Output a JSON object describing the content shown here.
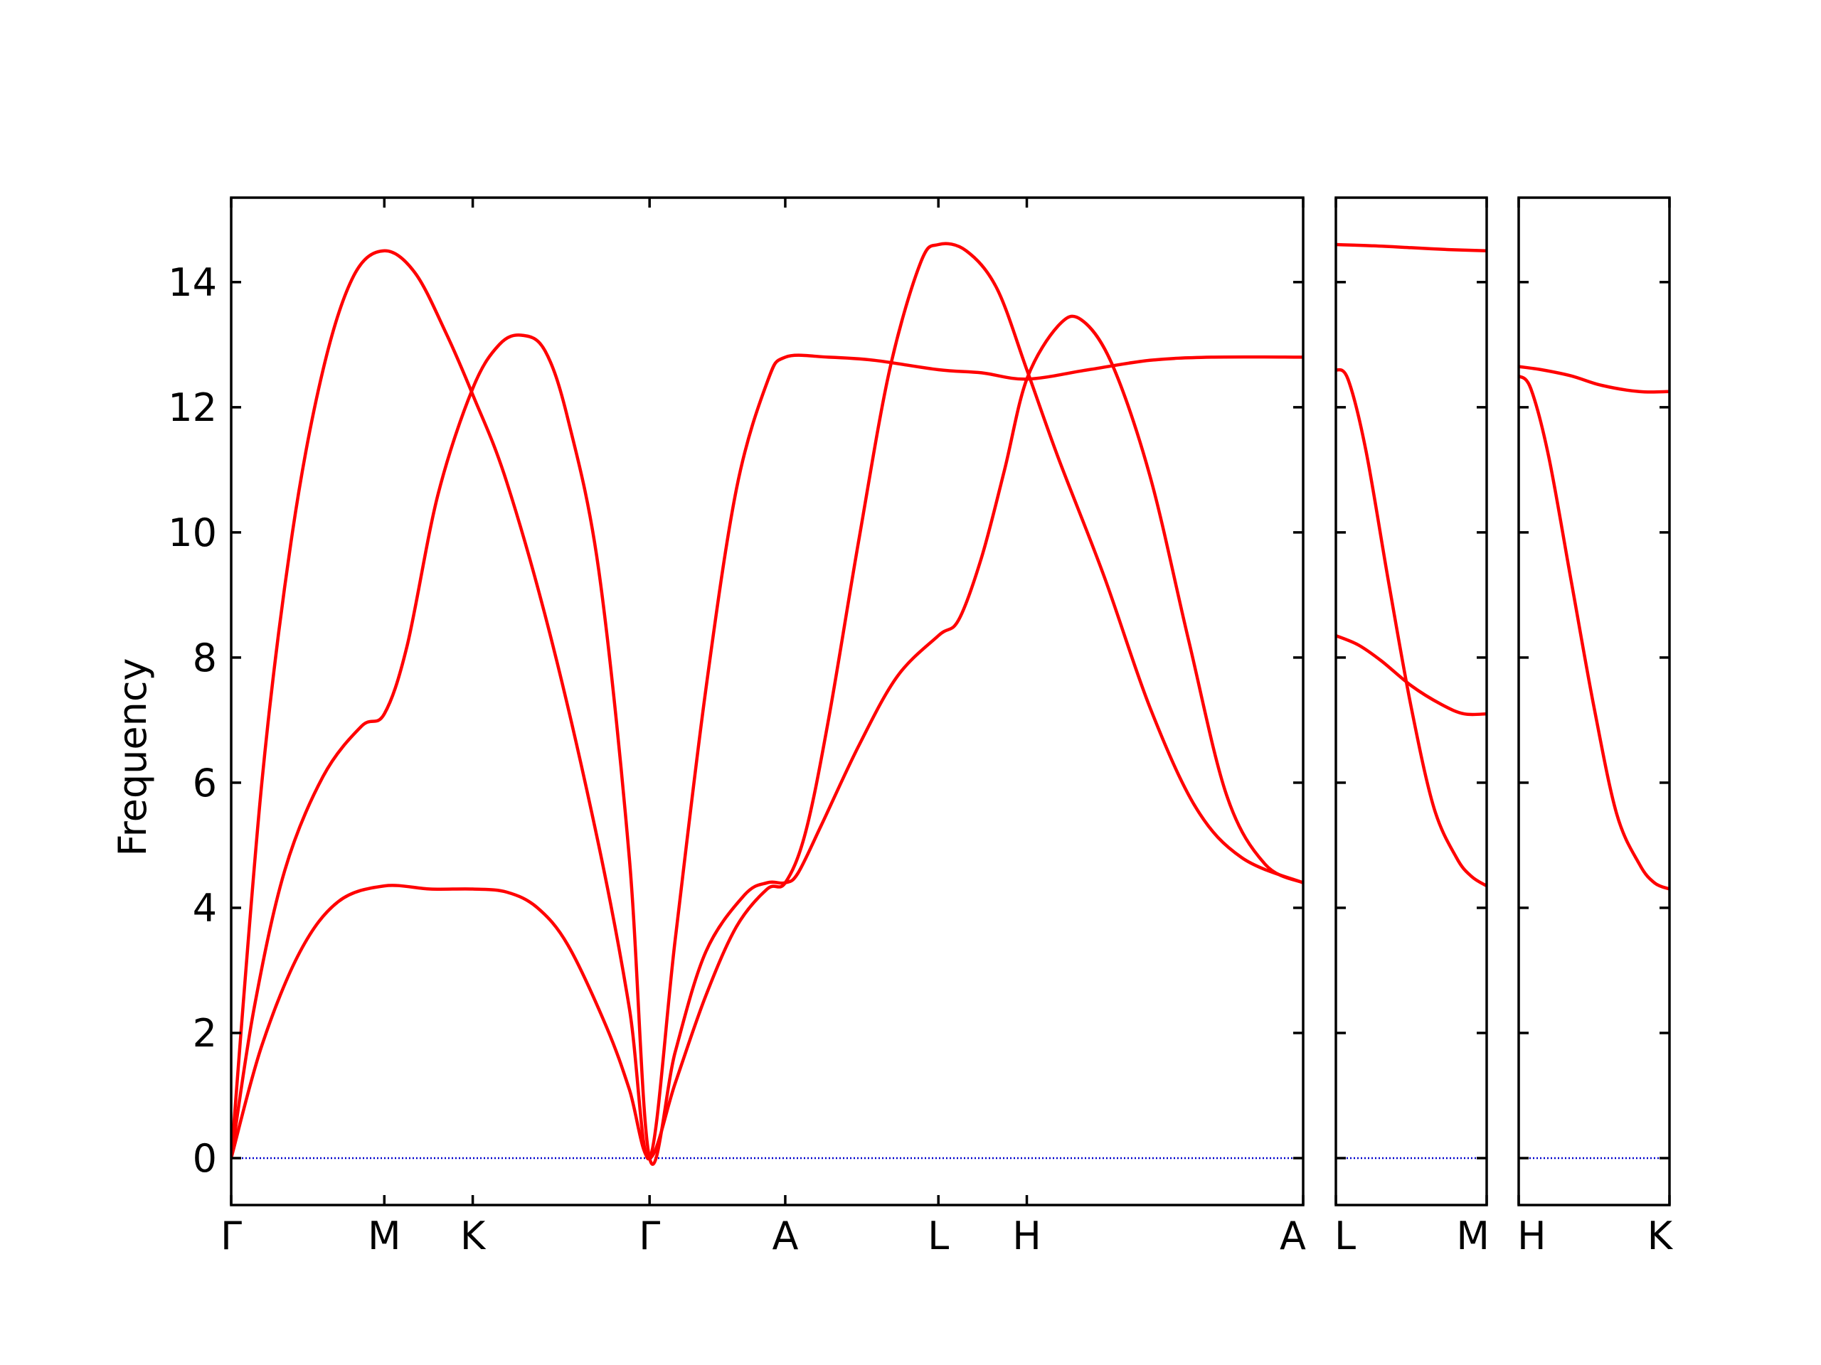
{
  "colors": {
    "bands": "#ff0000",
    "zero_line": "#0000cc",
    "frame": "#000000",
    "background": "#ffffff"
  },
  "chart_data": {
    "type": "line",
    "title": "",
    "ylabel": "Frequency",
    "ylim": [
      -0.75,
      15.35
    ],
    "yticks": [
      0,
      2,
      4,
      6,
      8,
      10,
      12,
      14
    ],
    "ytick_labels": [
      "0",
      "2",
      "4",
      "6",
      "8",
      "10",
      "12",
      "14"
    ],
    "zero_line": 0,
    "panels": [
      {
        "id": "main",
        "xticks": [
          0,
          1.0,
          1.5774,
          2.7321,
          3.6181,
          4.6181,
          5.1955,
          7.0
        ],
        "xtick_labels": [
          "Γ",
          "M",
          "K",
          "Γ",
          "A",
          "L",
          "H",
          "A"
        ],
        "series": [
          {
            "name": "",
            "points": [
              [
                0,
                0
              ],
              [
                0.2,
                6.0
              ],
              [
                0.4,
                10.0
              ],
              [
                0.6,
                12.6
              ],
              [
                0.8,
                14.1
              ],
              [
                1.0,
                14.5
              ],
              [
                1.2,
                14.15
              ],
              [
                1.4,
                13.2
              ],
              [
                1.5774,
                12.2
              ],
              [
                1.8,
                10.8
              ],
              [
                2.1,
                8.2
              ],
              [
                2.4,
                5.0
              ],
              [
                2.6,
                2.4
              ],
              [
                2.7321,
                0
              ],
              [
                2.9,
                3.5
              ],
              [
                3.1,
                7.5
              ],
              [
                3.3,
                10.7
              ],
              [
                3.5,
                12.4
              ],
              [
                3.6181,
                12.8
              ],
              [
                3.9,
                12.8
              ],
              [
                4.2,
                12.75
              ],
              [
                4.6181,
                12.6
              ],
              [
                4.9,
                12.55
              ],
              [
                5.1955,
                12.45
              ],
              [
                5.6,
                12.6
              ],
              [
                6.0,
                12.75
              ],
              [
                6.4,
                12.8
              ],
              [
                7.0,
                12.8
              ]
            ]
          },
          {
            "name": "",
            "points": [
              [
                0,
                0
              ],
              [
                0.15,
                2.4
              ],
              [
                0.35,
                4.6
              ],
              [
                0.6,
                6.1
              ],
              [
                0.85,
                6.9
              ],
              [
                1.0,
                7.1
              ],
              [
                1.15,
                8.2
              ],
              [
                1.35,
                10.6
              ],
              [
                1.5774,
                12.3
              ],
              [
                1.75,
                13.0
              ],
              [
                1.9,
                13.15
              ],
              [
                2.05,
                12.9
              ],
              [
                2.2,
                11.8
              ],
              [
                2.4,
                9.4
              ],
              [
                2.6,
                4.8
              ],
              [
                2.7321,
                0
              ],
              [
                2.9,
                1.7
              ],
              [
                3.1,
                3.3
              ],
              [
                3.35,
                4.2
              ],
              [
                3.5,
                4.4
              ],
              [
                3.6181,
                4.4
              ],
              [
                3.7,
                4.55
              ],
              [
                3.85,
                5.3
              ],
              [
                4.1,
                6.6
              ],
              [
                4.35,
                7.7
              ],
              [
                4.6181,
                8.35
              ],
              [
                4.75,
                8.6
              ],
              [
                4.9,
                9.6
              ],
              [
                5.05,
                11.0
              ],
              [
                5.1955,
                12.45
              ],
              [
                5.4,
                13.3
              ],
              [
                5.55,
                13.4
              ],
              [
                5.75,
                12.7
              ],
              [
                6.0,
                10.9
              ],
              [
                6.25,
                8.3
              ],
              [
                6.5,
                5.8
              ],
              [
                6.75,
                4.7
              ],
              [
                7.0,
                4.4
              ]
            ]
          },
          {
            "name": "",
            "points": [
              [
                0,
                0
              ],
              [
                0.2,
                1.8
              ],
              [
                0.45,
                3.3
              ],
              [
                0.7,
                4.1
              ],
              [
                1.0,
                4.35
              ],
              [
                1.3,
                4.3
              ],
              [
                1.5774,
                4.3
              ],
              [
                1.8,
                4.25
              ],
              [
                2.0,
                4.0
              ],
              [
                2.2,
                3.4
              ],
              [
                2.45,
                2.1
              ],
              [
                2.6,
                1.1
              ],
              [
                2.7321,
                0
              ],
              [
                2.9,
                1.2
              ],
              [
                3.1,
                2.6
              ],
              [
                3.3,
                3.7
              ],
              [
                3.5,
                4.3
              ],
              [
                3.6181,
                4.4
              ],
              [
                3.75,
                5.2
              ],
              [
                3.9,
                7.0
              ],
              [
                4.1,
                9.9
              ],
              [
                4.3,
                12.6
              ],
              [
                4.5,
                14.3
              ],
              [
                4.6181,
                14.6
              ],
              [
                4.8,
                14.5
              ],
              [
                5.0,
                13.9
              ],
              [
                5.1955,
                12.6
              ],
              [
                5.4,
                11.2
              ],
              [
                5.7,
                9.3
              ],
              [
                6.0,
                7.2
              ],
              [
                6.3,
                5.6
              ],
              [
                6.6,
                4.8
              ],
              [
                7.0,
                4.4
              ]
            ]
          }
        ]
      },
      {
        "id": "lm",
        "xticks": [
          0,
          1
        ],
        "xtick_labels": [
          "L",
          "M"
        ],
        "series": [
          {
            "name": "",
            "points": [
              [
                0,
                14.6
              ],
              [
                0.25,
                14.58
              ],
              [
                0.5,
                14.55
              ],
              [
                0.75,
                14.52
              ],
              [
                1.0,
                14.5
              ]
            ]
          },
          {
            "name": "",
            "points": [
              [
                0,
                12.6
              ],
              [
                0.08,
                12.45
              ],
              [
                0.2,
                11.3
              ],
              [
                0.35,
                9.2
              ],
              [
                0.5,
                7.2
              ],
              [
                0.65,
                5.6
              ],
              [
                0.8,
                4.8
              ],
              [
                0.9,
                4.5
              ],
              [
                1.0,
                4.35
              ]
            ]
          },
          {
            "name": "",
            "points": [
              [
                0,
                8.35
              ],
              [
                0.15,
                8.2
              ],
              [
                0.3,
                7.95
              ],
              [
                0.5,
                7.55
              ],
              [
                0.7,
                7.25
              ],
              [
                0.85,
                7.1
              ],
              [
                1.0,
                7.1
              ]
            ]
          }
        ]
      },
      {
        "id": "hk",
        "xticks": [
          0,
          1
        ],
        "xtick_labels": [
          "H",
          "K"
        ],
        "series": [
          {
            "name": "",
            "points": [
              [
                0,
                12.65
              ],
              [
                0.15,
                12.6
              ],
              [
                0.35,
                12.5
              ],
              [
                0.55,
                12.35
              ],
              [
                0.8,
                12.25
              ],
              [
                1.0,
                12.25
              ]
            ]
          },
          {
            "name": "",
            "points": [
              [
                0,
                12.5
              ],
              [
                0.08,
                12.3
              ],
              [
                0.2,
                11.2
              ],
              [
                0.35,
                9.2
              ],
              [
                0.5,
                7.2
              ],
              [
                0.65,
                5.5
              ],
              [
                0.8,
                4.7
              ],
              [
                0.9,
                4.4
              ],
              [
                1.0,
                4.3
              ]
            ]
          }
        ]
      }
    ]
  }
}
